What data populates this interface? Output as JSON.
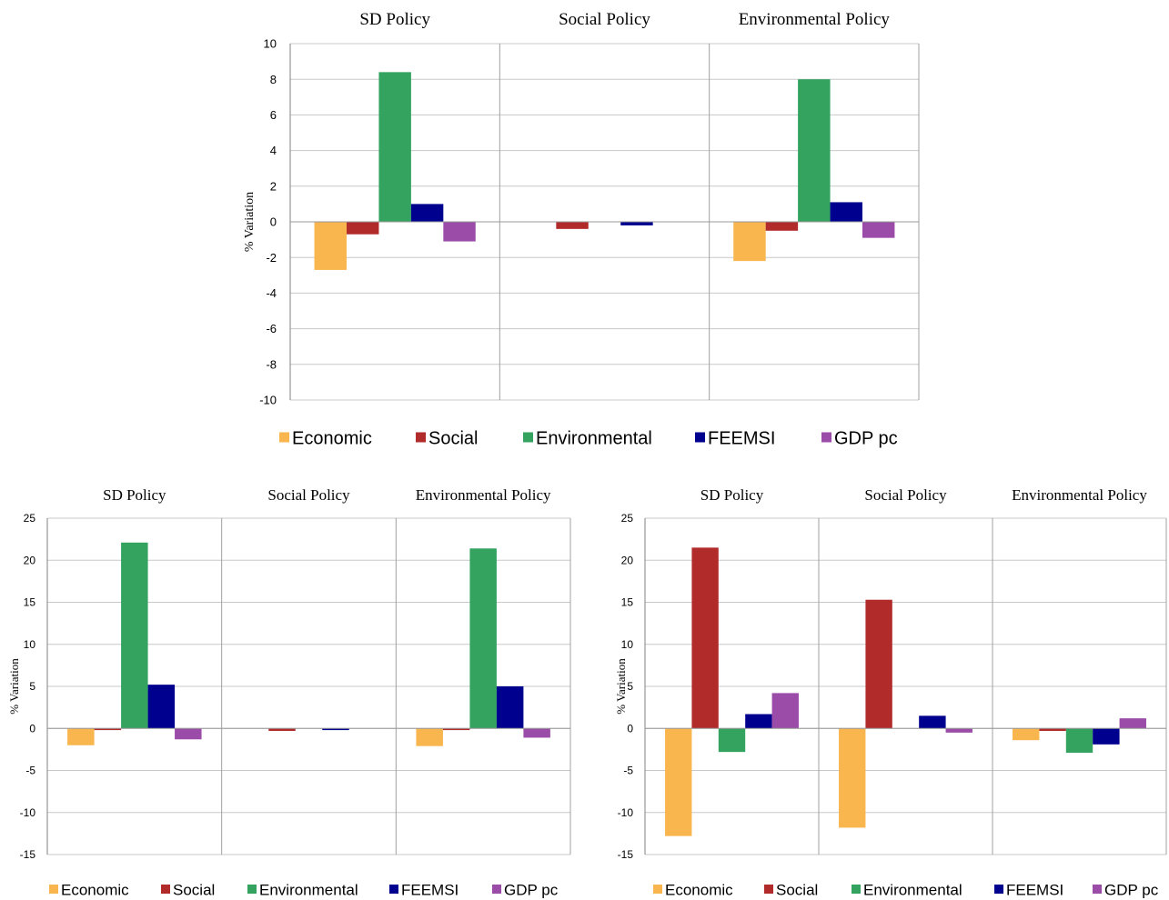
{
  "colors": {
    "Economic": "#F9B54E",
    "Social": "#B22B2B",
    "Environmental": "#33A35F",
    "FEEMSI": "#00008F",
    "GDP pc": "#9B4CA8",
    "gridline": "#C8C8C8",
    "panel_divider": "#A0A0A0"
  },
  "chart_data": [
    {
      "id": "top",
      "type": "bar",
      "panels": [
        "SD Policy",
        "Social Policy",
        "Environmental Policy"
      ],
      "ylabel": "% Variation",
      "ylim": [
        -10,
        10
      ],
      "yticks": [
        10,
        8,
        6,
        4,
        2,
        0,
        -2,
        -4,
        -6,
        -8,
        -10
      ],
      "grid": true,
      "legend_position": "bottom",
      "series": [
        {
          "name": "Economic",
          "values": [
            -2.7,
            0,
            -2.2
          ]
        },
        {
          "name": "Social",
          "values": [
            -0.7,
            -0.4,
            -0.5
          ]
        },
        {
          "name": "Environmental",
          "values": [
            8.4,
            0,
            8.0
          ]
        },
        {
          "name": "FEEMSI",
          "values": [
            1.0,
            -0.2,
            1.1
          ]
        },
        {
          "name": "GDP pc",
          "values": [
            -1.1,
            0,
            -0.9
          ]
        }
      ]
    },
    {
      "id": "bottom-left",
      "type": "bar",
      "panels": [
        "SD Policy",
        "Social Policy",
        "Environmental Policy"
      ],
      "ylabel": "% Variation",
      "ylim": [
        -15,
        25
      ],
      "yticks": [
        25,
        20,
        15,
        10,
        5,
        0,
        -5,
        -10,
        -15
      ],
      "grid": true,
      "legend_position": "bottom",
      "series": [
        {
          "name": "Economic",
          "values": [
            -2.0,
            0,
            -2.1
          ]
        },
        {
          "name": "Social",
          "values": [
            -0.2,
            -0.3,
            -0.2
          ]
        },
        {
          "name": "Environmental",
          "values": [
            22.1,
            0,
            21.4
          ]
        },
        {
          "name": "FEEMSI",
          "values": [
            5.2,
            -0.2,
            5.0
          ]
        },
        {
          "name": "GDP pc",
          "values": [
            -1.3,
            0,
            -1.1
          ]
        }
      ]
    },
    {
      "id": "bottom-right",
      "type": "bar",
      "panels": [
        "SD Policy",
        "Social Policy",
        "Environmental Policy"
      ],
      "ylabel": "% Variation",
      "ylim": [
        -15,
        25
      ],
      "yticks": [
        25,
        20,
        15,
        10,
        5,
        0,
        -5,
        -10,
        -15
      ],
      "grid": true,
      "legend_position": "bottom",
      "series": [
        {
          "name": "Economic",
          "values": [
            -12.8,
            -11.8,
            -1.4
          ]
        },
        {
          "name": "Social",
          "values": [
            21.5,
            15.3,
            -0.3
          ]
        },
        {
          "name": "Environmental",
          "values": [
            -2.8,
            0,
            -2.9
          ]
        },
        {
          "name": "FEEMSI",
          "values": [
            1.7,
            1.5,
            -1.9
          ]
        },
        {
          "name": "GDP pc",
          "values": [
            4.2,
            -0.5,
            1.2
          ]
        }
      ]
    }
  ]
}
